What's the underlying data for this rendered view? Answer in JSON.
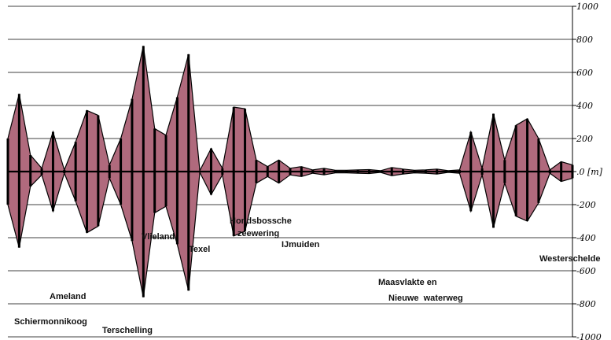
{
  "chart_data": {
    "type": "area",
    "title": "",
    "xlabel": "",
    "ylabel": "",
    "y_unit_label": "[m]",
    "ylim": [
      -1000,
      1000
    ],
    "y_ticks": [
      {
        "value": 1000,
        "label": "1000"
      },
      {
        "value": 800,
        "label": "800"
      },
      {
        "value": 600,
        "label": "600"
      },
      {
        "value": 400,
        "label": "400"
      },
      {
        "value": 200,
        "label": "200"
      },
      {
        "value": 0,
        "label": ".0"
      },
      {
        "value": -200,
        "label": "-200"
      },
      {
        "value": -400,
        "label": "-400"
      },
      {
        "value": -600,
        "label": "-600"
      },
      {
        "value": -800,
        "label": "-800"
      },
      {
        "value": -1000,
        "label": "-1000"
      }
    ],
    "grid": true,
    "legend": "none",
    "colors": {
      "line": "#000000",
      "fill": "#b06a7d",
      "grid": "#000000"
    },
    "series": [
      {
        "x": [
          0,
          2,
          4,
          6,
          8,
          10,
          12,
          14,
          16,
          18,
          20,
          22,
          24,
          26,
          28,
          30,
          32,
          34,
          36,
          38,
          40,
          42,
          44,
          46,
          48,
          50,
          52,
          54,
          56,
          58,
          60,
          62,
          64,
          66,
          68,
          70,
          72,
          74,
          76,
          78,
          80,
          82,
          84,
          86,
          88,
          90,
          92,
          94,
          96,
          98,
          100
        ],
        "upper": [
          200,
          470,
          100,
          20,
          240,
          10,
          180,
          370,
          340,
          40,
          200,
          440,
          760,
          260,
          220,
          450,
          710,
          5,
          140,
          20,
          390,
          380,
          70,
          30,
          70,
          20,
          30,
          10,
          20,
          8,
          8,
          10,
          12,
          5,
          25,
          15,
          8,
          10,
          15,
          5,
          10,
          240,
          20,
          350,
          70,
          280,
          320,
          200,
          10,
          60,
          40
        ],
        "lower": [
          -200,
          -460,
          -90,
          -20,
          -240,
          -10,
          -180,
          -370,
          -330,
          -40,
          -200,
          -420,
          -760,
          -250,
          -210,
          -440,
          -720,
          -5,
          -140,
          -20,
          -390,
          -360,
          -70,
          -30,
          -70,
          -20,
          -30,
          -10,
          -20,
          -8,
          -8,
          -10,
          -12,
          -5,
          -25,
          -15,
          -8,
          -10,
          -15,
          -5,
          -10,
          -240,
          -20,
          -340,
          -70,
          -270,
          -300,
          -190,
          -10,
          -60,
          -40
        ]
      }
    ],
    "annotations": [
      {
        "text": "Schiermonnikoog"
      },
      {
        "text": "Ameland"
      },
      {
        "text": "Terschelling"
      },
      {
        "text": "Vlieland"
      },
      {
        "text": "Texel"
      },
      {
        "text": "Hondsbossche"
      },
      {
        "text": "zeewering"
      },
      {
        "text": "IJmuiden"
      },
      {
        "text": "Maasvlakte en"
      },
      {
        "text": "Nieuwe  waterweg"
      },
      {
        "text": "Westerschelde"
      }
    ]
  }
}
